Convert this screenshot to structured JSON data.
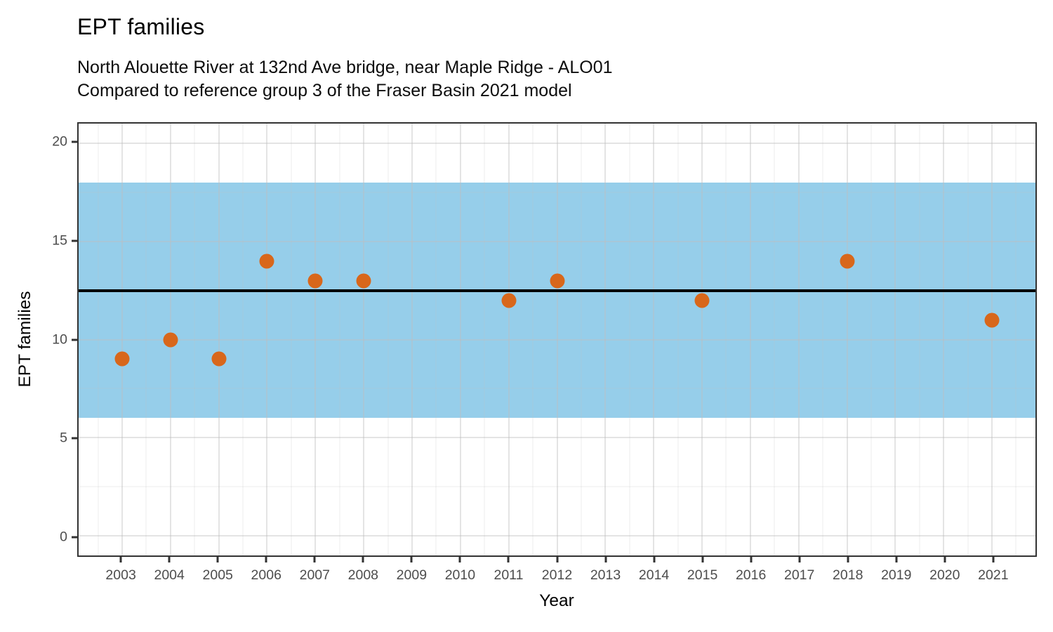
{
  "chart_data": {
    "type": "scatter",
    "title": "EPT families",
    "subtitle_lines": [
      "North Alouette River at 132nd Ave bridge, near Maple Ridge - ALO01",
      "Compared to reference group 3 of the Fraser Basin 2021 model"
    ],
    "xlabel": "Year",
    "ylabel": "EPT families",
    "x_domain": [
      2002.1,
      2021.9
    ],
    "y_domain": [
      -1,
      21
    ],
    "x_ticks": [
      2003,
      2004,
      2005,
      2006,
      2007,
      2008,
      2009,
      2010,
      2011,
      2012,
      2013,
      2014,
      2015,
      2016,
      2017,
      2018,
      2019,
      2020,
      2021
    ],
    "y_ticks": [
      0,
      5,
      10,
      15,
      20
    ],
    "x_minor_gridlines": [
      2002.5,
      2003.5,
      2004.5,
      2005.5,
      2006.5,
      2007.5,
      2008.5,
      2009.5,
      2010.5,
      2011.5,
      2012.5,
      2013.5,
      2014.5,
      2015.5,
      2016.5,
      2017.5,
      2018.5,
      2019.5,
      2020.5,
      2021.5
    ],
    "y_minor_gridlines": [
      2.5,
      7.5,
      12.5,
      17.5
    ],
    "points": [
      {
        "x": 2003,
        "y": 9
      },
      {
        "x": 2004,
        "y": 10
      },
      {
        "x": 2005,
        "y": 9
      },
      {
        "x": 2006,
        "y": 14
      },
      {
        "x": 2007,
        "y": 13
      },
      {
        "x": 2008,
        "y": 13
      },
      {
        "x": 2011,
        "y": 12
      },
      {
        "x": 2012,
        "y": 13
      },
      {
        "x": 2015,
        "y": 12
      },
      {
        "x": 2018,
        "y": 14
      },
      {
        "x": 2021,
        "y": 11
      }
    ],
    "reference_band": {
      "ymin": 6,
      "ymax": 18,
      "color": "#96CEEA"
    },
    "reference_line": {
      "y": 12.5,
      "color": "#000000"
    },
    "point_color": "#D8671B",
    "grid": "on",
    "legend_position": "none"
  }
}
